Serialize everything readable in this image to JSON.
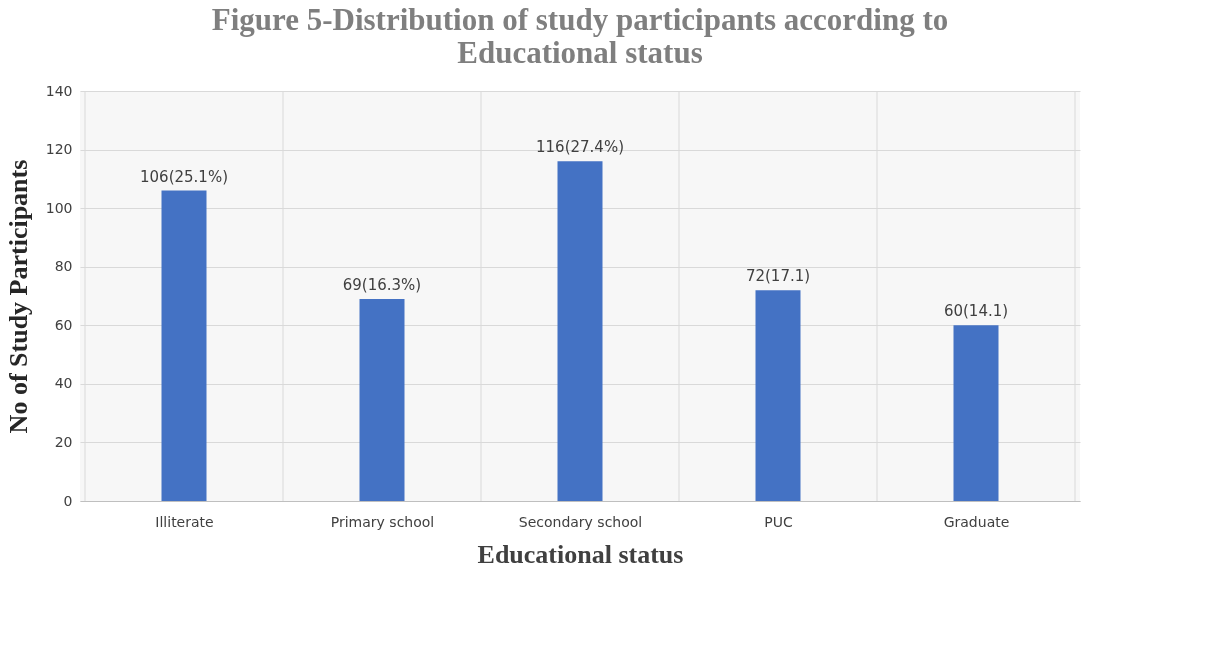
{
  "chart_data": {
    "type": "bar",
    "title": "Figure 5-Distribution of study participants according to Educational status",
    "xlabel": "Educational status",
    "ylabel": "No of Study Participants",
    "categories": [
      "Illiterate",
      "Primary school",
      "Secondary school",
      "PUC",
      "Graduate"
    ],
    "values": [
      106,
      69,
      116,
      72,
      60
    ],
    "value_labels": [
      "106(25.1%)",
      "69(16.3%)",
      "116(27.4%)",
      "72(17.1)",
      "60(14.1)"
    ],
    "color": "#4472c4",
    "ylim": [
      0,
      140
    ],
    "yticks": [
      0,
      20,
      40,
      60,
      80,
      100,
      120,
      140
    ],
    "grid": true
  }
}
